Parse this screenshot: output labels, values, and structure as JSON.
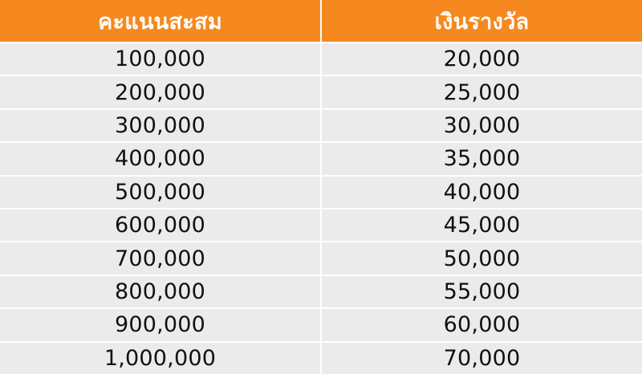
{
  "colors": {
    "header_bg": "#f5891f",
    "header_text": "#ffffff",
    "row_bg": "#ebebeb",
    "cell_text": "#111111"
  },
  "table": {
    "headers": [
      "คะแนนสะสม",
      "เงินรางวัล"
    ],
    "rows": [
      [
        "100,000",
        "20,000"
      ],
      [
        "200,000",
        "25,000"
      ],
      [
        "300,000",
        "30,000"
      ],
      [
        "400,000",
        "35,000"
      ],
      [
        "500,000",
        "40,000"
      ],
      [
        "600,000",
        "45,000"
      ],
      [
        "700,000",
        "50,000"
      ],
      [
        "800,000",
        "55,000"
      ],
      [
        "900,000",
        "60,000"
      ],
      [
        "1,000,000",
        "70,000"
      ]
    ]
  }
}
